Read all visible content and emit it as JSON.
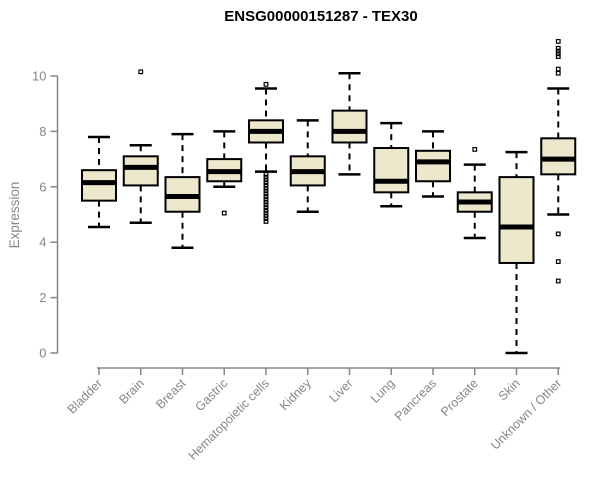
{
  "title": "ENSG00000151287 - TEX30",
  "colors": {
    "box_fill": "#EDE7CB",
    "box_stroke": "#000000",
    "median": "#000000",
    "whisker": "#000000",
    "axis": "#878787",
    "tick_label": "#878787",
    "title_text": "#000000",
    "background": "#ffffff"
  },
  "chart_data": {
    "type": "box",
    "title": "ENSG00000151287 - TEX30",
    "xlabel": "",
    "ylabel": "Expression",
    "yticks": [
      0,
      2,
      4,
      6,
      8,
      10
    ],
    "ylim": [
      0,
      10
    ],
    "grid": false,
    "legend": false,
    "categories": [
      "Bladder",
      "Brain",
      "Breast",
      "Gastric",
      "Hematopoietic cells",
      "Kidney",
      "Liver",
      "Lung",
      "Pancreas",
      "Prostate",
      "Skin",
      "Unknown / Other"
    ],
    "series": [
      {
        "name": "Bladder",
        "low": 4.55,
        "q1": 5.5,
        "median": 6.15,
        "q3": 6.6,
        "high": 7.8,
        "outliers": []
      },
      {
        "name": "Brain",
        "low": 4.7,
        "q1": 6.05,
        "median": 6.7,
        "q3": 7.1,
        "high": 7.5,
        "outliers": [
          10.15
        ]
      },
      {
        "name": "Breast",
        "low": 3.8,
        "q1": 5.1,
        "median": 5.65,
        "q3": 6.35,
        "high": 7.9,
        "outliers": []
      },
      {
        "name": "Gastric",
        "low": 6.0,
        "q1": 6.2,
        "median": 6.55,
        "q3": 7.0,
        "high": 8.0,
        "outliers": [
          5.05
        ]
      },
      {
        "name": "Hematopoietic cells",
        "low": 6.55,
        "q1": 7.6,
        "median": 8.0,
        "q3": 8.4,
        "high": 9.55,
        "outliers": [
          9.7,
          6.45,
          6.35,
          6.25,
          6.15,
          6.05,
          5.95,
          5.85,
          5.75,
          5.65,
          5.55,
          5.45,
          5.35,
          5.25,
          5.15,
          5.05,
          4.95,
          4.85,
          4.75
        ]
      },
      {
        "name": "Kidney",
        "low": 5.1,
        "q1": 6.05,
        "median": 6.55,
        "q3": 7.1,
        "high": 8.4,
        "outliers": []
      },
      {
        "name": "Liver",
        "low": 6.45,
        "q1": 7.6,
        "median": 8.0,
        "q3": 8.75,
        "high": 10.1,
        "outliers": []
      },
      {
        "name": "Lung",
        "low": 5.3,
        "q1": 5.8,
        "median": 6.2,
        "q3": 7.4,
        "high": 8.3,
        "outliers": []
      },
      {
        "name": "Pancreas",
        "low": 5.65,
        "q1": 6.2,
        "median": 6.9,
        "q3": 7.3,
        "high": 8.0,
        "outliers": []
      },
      {
        "name": "Prostate",
        "low": 4.15,
        "q1": 5.1,
        "median": 5.45,
        "q3": 5.8,
        "high": 6.8,
        "outliers": [
          7.35
        ]
      },
      {
        "name": "Skin",
        "low": 0.0,
        "q1": 3.25,
        "median": 4.55,
        "q3": 6.35,
        "high": 7.25,
        "outliers": []
      },
      {
        "name": "Unknown / Other",
        "low": 5.0,
        "q1": 6.45,
        "median": 7.0,
        "q3": 7.75,
        "high": 9.55,
        "outliers": [
          11.25,
          11.0,
          10.9,
          10.8,
          10.7,
          10.25,
          10.1,
          4.3,
          3.3,
          2.6
        ]
      }
    ]
  }
}
